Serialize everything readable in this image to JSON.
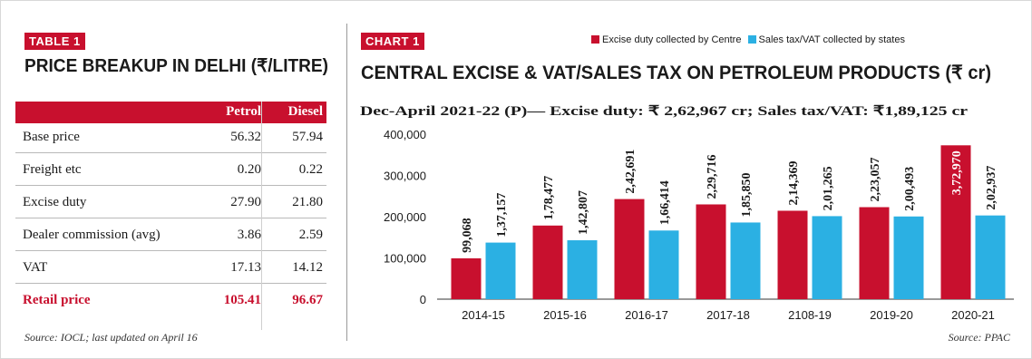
{
  "table": {
    "tag": "TABLE 1",
    "title": "PRICE BREAKUP IN DELHI (₹/LITRE)",
    "columns": [
      "Petrol",
      "Diesel"
    ],
    "rows": [
      {
        "label": "Base price",
        "petrol": "56.32",
        "diesel": "57.94"
      },
      {
        "label": "Freight etc",
        "petrol": "0.20",
        "diesel": "0.22"
      },
      {
        "label": "Excise duty",
        "petrol": "27.90",
        "diesel": "21.80"
      },
      {
        "label": "Dealer commission (avg)",
        "petrol": "3.86",
        "diesel": "2.59"
      },
      {
        "label": "VAT",
        "petrol": "17.13",
        "diesel": "14.12"
      },
      {
        "label": "Retail price",
        "petrol": "105.41",
        "diesel": "96.67"
      }
    ],
    "source": "Source: IOCL; last updated on April 16"
  },
  "chart_data": {
    "type": "bar",
    "tag": "CHART 1",
    "title": "CENTRAL EXCISE & VAT/SALES TAX ON PETROLEUM PRODUCTS (₹ cr)",
    "subtitle": "Dec-April 2021-22 (P)— Excise duty: ₹ 2,62,967 cr; Sales tax/VAT: ₹1,89,125 cr",
    "categories": [
      "2014-15",
      "2015-16",
      "2016-17",
      "2017-18",
      "2108-19",
      "2019-20",
      "2020-21"
    ],
    "series": [
      {
        "name": "Excise duty collected by Centre",
        "color": "#c8102e",
        "values": [
          99068,
          178477,
          242691,
          229716,
          214369,
          223057,
          372970
        ],
        "labels": [
          "99,068",
          "1,78,477",
          "2,42,691",
          "2,29,716",
          "2,14,369",
          "2,23,057",
          "3,72,970"
        ]
      },
      {
        "name": "Sales tax/VAT collected by states",
        "color": "#2bb0e3",
        "values": [
          137157,
          142807,
          166414,
          185850,
          201265,
          200493,
          202937
        ],
        "labels": [
          "1,37,157",
          "1,42,807",
          "1,66,414",
          "1,85,850",
          "2,01,265",
          "2,00,493",
          "2,02,937"
        ]
      }
    ],
    "yticks": [
      "0",
      "100,000",
      "200,000",
      "300,000",
      "400,000"
    ],
    "ylim": [
      0,
      400000
    ],
    "legend_position": "top-right",
    "grid": false,
    "source": "Source: PPAC"
  }
}
